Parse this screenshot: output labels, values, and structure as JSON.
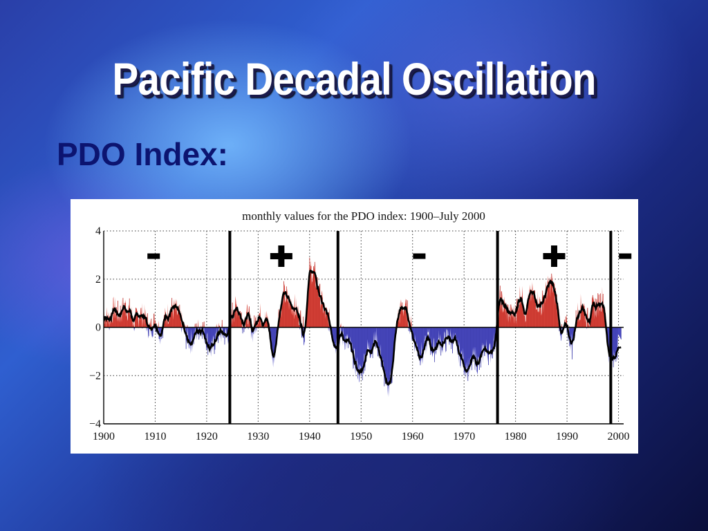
{
  "slide": {
    "title": "Pacific Decadal Oscillation",
    "subtitle": "PDO Index:"
  },
  "chart_data": {
    "type": "area",
    "title": "monthly values for the PDO index: 1900–July 2000",
    "xlabel": "",
    "ylabel": "",
    "xlim": [
      1900,
      2001
    ],
    "ylim": [
      -4,
      4
    ],
    "x_ticks": [
      1900,
      1910,
      1920,
      1930,
      1940,
      1950,
      1960,
      1970,
      1980,
      1990,
      2000
    ],
    "y_ticks": [
      4,
      2,
      0,
      -2,
      -4
    ],
    "y_tick_labels": [
      "4",
      "2",
      "0",
      "−2",
      "−4"
    ],
    "grid": true,
    "colors": {
      "positive": "#d9453a",
      "negative": "#4a4ac0",
      "line": "#000000"
    },
    "regime_shifts": [
      1924.5,
      1945.5,
      1976.5,
      1998.5
    ],
    "regime_signs": [
      {
        "year": 1909.7,
        "sign": "-"
      },
      {
        "year": 1934.5,
        "sign": "+"
      },
      {
        "year": 1961.3,
        "sign": "-"
      },
      {
        "year": 1987.5,
        "sign": "+"
      },
      {
        "year": 2001.3,
        "sign": "-"
      }
    ],
    "series": [
      {
        "x": [
          1900,
          1901,
          1902,
          1903,
          1904,
          1905,
          1906,
          1907,
          1908,
          1909,
          1910,
          1911,
          1912,
          1913,
          1914,
          1915,
          1916,
          1917,
          1918,
          1919,
          1920,
          1921,
          1922,
          1923,
          1924,
          1925,
          1926,
          1927,
          1928,
          1929,
          1930,
          1931,
          1932,
          1933,
          1934,
          1935,
          1936,
          1937,
          1938,
          1939,
          1940,
          1941,
          1942,
          1943,
          1944,
          1945,
          1946,
          1947,
          1948,
          1949,
          1950,
          1951,
          1952,
          1953,
          1954,
          1955,
          1956,
          1957,
          1958,
          1959,
          1960,
          1961,
          1962,
          1963,
          1964,
          1965,
          1966,
          1967,
          1968,
          1969,
          1970,
          1971,
          1972,
          1973,
          1974,
          1975,
          1976,
          1977,
          1978,
          1979,
          1980,
          1981,
          1982,
          1983,
          1984,
          1985,
          1986,
          1987,
          1988,
          1989,
          1990,
          1991,
          1992,
          1993,
          1994,
          1995,
          1996,
          1997,
          1998,
          1999,
          2000
        ],
        "values": [
          0.6,
          0.3,
          0.8,
          0.5,
          0.9,
          0.7,
          0.2,
          0.6,
          0.4,
          -0.1,
          0.3,
          -0.2,
          0.4,
          0.8,
          0.7,
          0.3,
          -0.4,
          -0.6,
          -0.2,
          0.1,
          -0.5,
          -1.0,
          -0.3,
          -0.2,
          -0.4,
          0.6,
          0.9,
          0.3,
          0.5,
          -0.2,
          0.6,
          0.4,
          0.2,
          -1.5,
          0.5,
          1.4,
          1.1,
          0.9,
          0.5,
          -0.3,
          2.4,
          2.2,
          1.3,
          0.6,
          0.2,
          -0.7,
          -0.3,
          -0.5,
          -0.9,
          -1.6,
          -2.0,
          -1.0,
          -0.8,
          -0.5,
          -1.4,
          -2.6,
          -1.9,
          0.3,
          0.9,
          0.6,
          -0.3,
          -0.9,
          -1.2,
          -0.4,
          -1.0,
          -0.6,
          -0.7,
          -0.4,
          -0.6,
          -1.0,
          -1.5,
          -1.8,
          -1.2,
          -1.6,
          -0.8,
          -1.1,
          -0.6,
          1.2,
          0.8,
          0.5,
          0.6,
          1.5,
          0.6,
          1.4,
          1.2,
          0.9,
          1.5,
          1.9,
          1.1,
          -0.4,
          0.1,
          -0.8,
          0.6,
          1.0,
          0.3,
          0.8,
          0.9,
          1.3,
          -0.9,
          -1.5,
          -0.5
        ]
      }
    ]
  }
}
